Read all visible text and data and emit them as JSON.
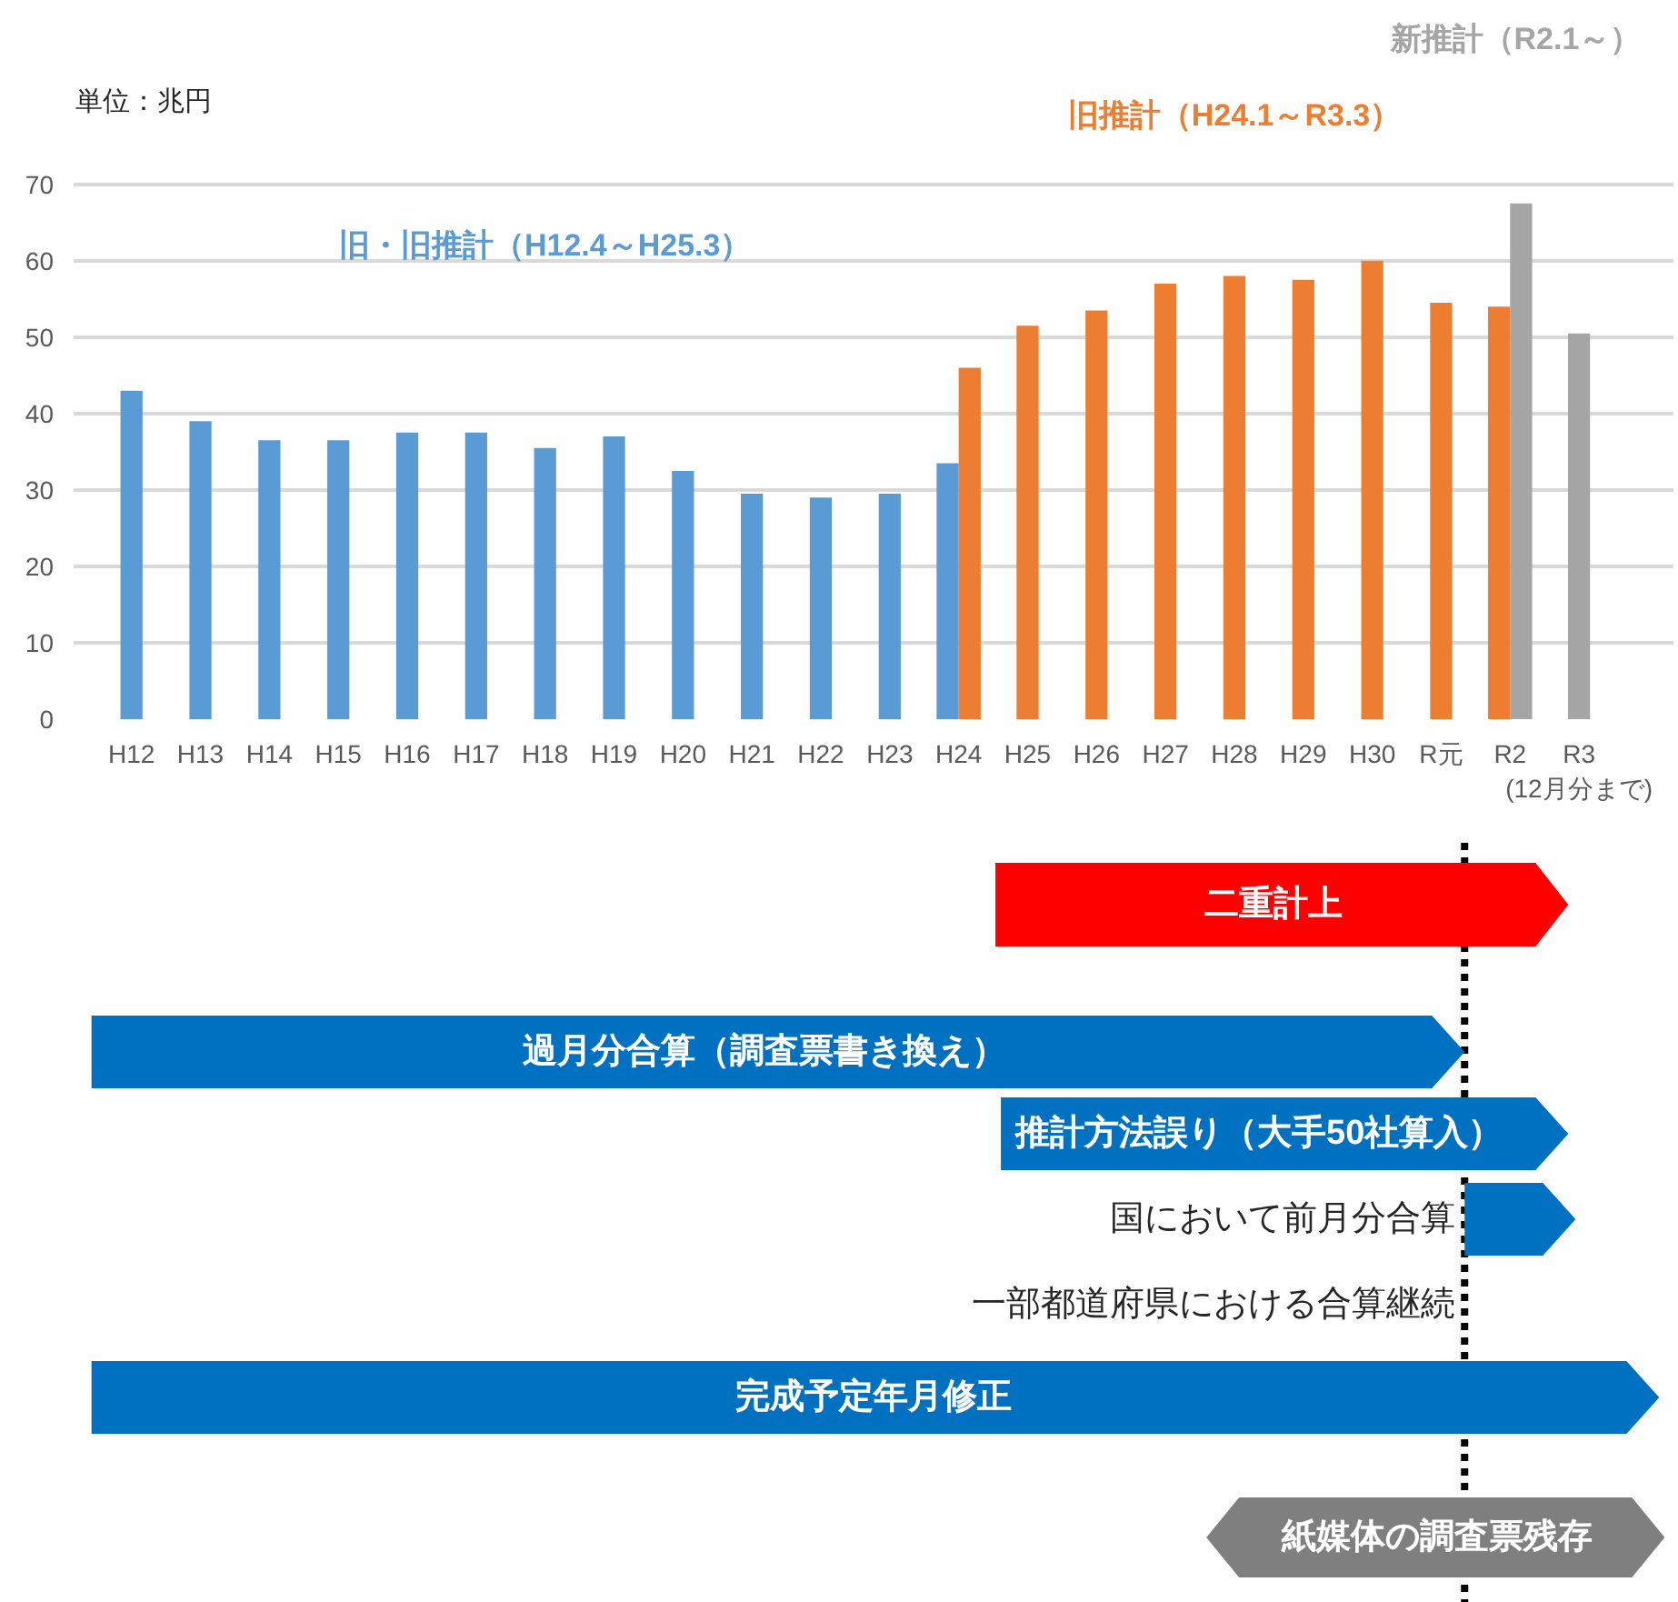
{
  "chart_data": [
    {
      "type": "bar",
      "ylabel": "単位：兆円",
      "categories": [
        "H12",
        "H13",
        "H14",
        "H15",
        "H16",
        "H17",
        "H18",
        "H19",
        "H20",
        "H21",
        "H22",
        "H23",
        "H24",
        "H25",
        "H26",
        "H27",
        "H28",
        "H29",
        "H30",
        "R元",
        "R2",
        "R3\n(12月分まで)"
      ],
      "series": [
        {
          "name": "旧・旧推計（H12.4～H25.3）",
          "color": "#5b9bd5",
          "values": [
            43,
            39,
            36.5,
            36.5,
            37.5,
            37.5,
            35.5,
            37,
            32.5,
            29.5,
            29,
            29.5,
            33.5,
            null,
            null,
            null,
            null,
            null,
            null,
            null,
            null,
            null
          ]
        },
        {
          "name": "旧推計（H24.1～R3.3）",
          "color": "#ed7d31",
          "values": [
            null,
            null,
            null,
            null,
            null,
            null,
            null,
            null,
            null,
            null,
            null,
            null,
            46,
            51.5,
            53.5,
            57,
            58,
            57.5,
            60,
            54.5,
            54,
            null
          ]
        },
        {
          "name": "新推計（R2.1～）",
          "color": "#a5a5a5",
          "values": [
            null,
            null,
            null,
            null,
            null,
            null,
            null,
            null,
            null,
            null,
            null,
            null,
            null,
            null,
            null,
            null,
            null,
            null,
            null,
            null,
            67.5,
            50.5
          ]
        }
      ],
      "ylim": [
        0,
        70
      ],
      "yticks": [
        0,
        10,
        20,
        30,
        40,
        50,
        60,
        70
      ],
      "grid": "y",
      "legend": false
    },
    {
      "type": "other",
      "annotations": [
        "二重計上",
        "過月分合算（調査票書き換え）",
        "推計方法誤り（大手50社算入）",
        "国において前月分合算",
        "一部都道府県における合算継続",
        "完成予定年月修正",
        "紙媒体の調査票残存"
      ]
    }
  ]
}
